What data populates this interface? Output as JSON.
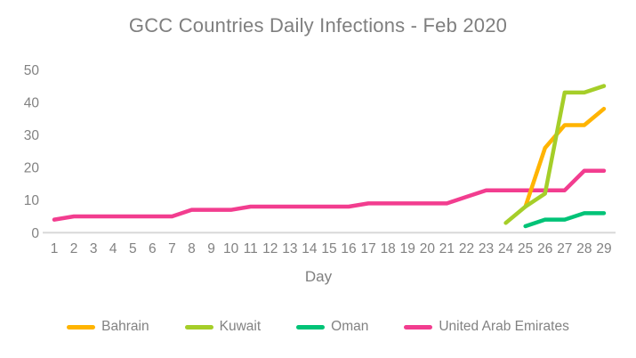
{
  "chart_data": {
    "type": "line",
    "title": "GCC Countries Daily Infections - Feb 2020",
    "xlabel": "Day",
    "ylabel": "",
    "ylim": [
      0,
      50
    ],
    "yticks": [
      0,
      10,
      20,
      30,
      40,
      50
    ],
    "x": [
      1,
      2,
      3,
      4,
      5,
      6,
      7,
      8,
      9,
      10,
      11,
      12,
      13,
      14,
      15,
      16,
      17,
      18,
      19,
      20,
      21,
      22,
      23,
      24,
      25,
      26,
      27,
      28,
      29
    ],
    "grid": false,
    "legend_position": "bottom",
    "draw_order": [
      "United Arab Emirates",
      "Bahrain",
      "Kuwait",
      "Oman"
    ],
    "series": [
      {
        "name": "Bahrain",
        "color": "#FFB400",
        "days": [
          25,
          26,
          27,
          28,
          29
        ],
        "values": [
          8,
          26,
          33,
          33,
          38
        ]
      },
      {
        "name": "Kuwait",
        "color": "#A5CE29",
        "days": [
          24,
          25,
          26,
          27,
          28,
          29
        ],
        "values": [
          3,
          8,
          12,
          43,
          43,
          45
        ]
      },
      {
        "name": "Oman",
        "color": "#00C377",
        "days": [
          25,
          26,
          27,
          28,
          29
        ],
        "values": [
          2,
          4,
          4,
          6,
          6
        ]
      },
      {
        "name": "United Arab Emirates",
        "color": "#F23D8F",
        "days": [
          1,
          2,
          3,
          4,
          5,
          6,
          7,
          8,
          9,
          10,
          11,
          12,
          13,
          14,
          15,
          16,
          17,
          18,
          19,
          20,
          21,
          22,
          23,
          24,
          25,
          26,
          27,
          28,
          29
        ],
        "values": [
          4,
          5,
          5,
          5,
          5,
          5,
          5,
          7,
          7,
          7,
          8,
          8,
          8,
          8,
          8,
          8,
          9,
          9,
          9,
          9,
          9,
          11,
          13,
          13,
          13,
          13,
          13,
          19,
          19
        ]
      }
    ],
    "colors": {
      "title_text": "#7F7F7F",
      "tick_text": "#828282",
      "axis_line": "#D8D8D8"
    }
  }
}
